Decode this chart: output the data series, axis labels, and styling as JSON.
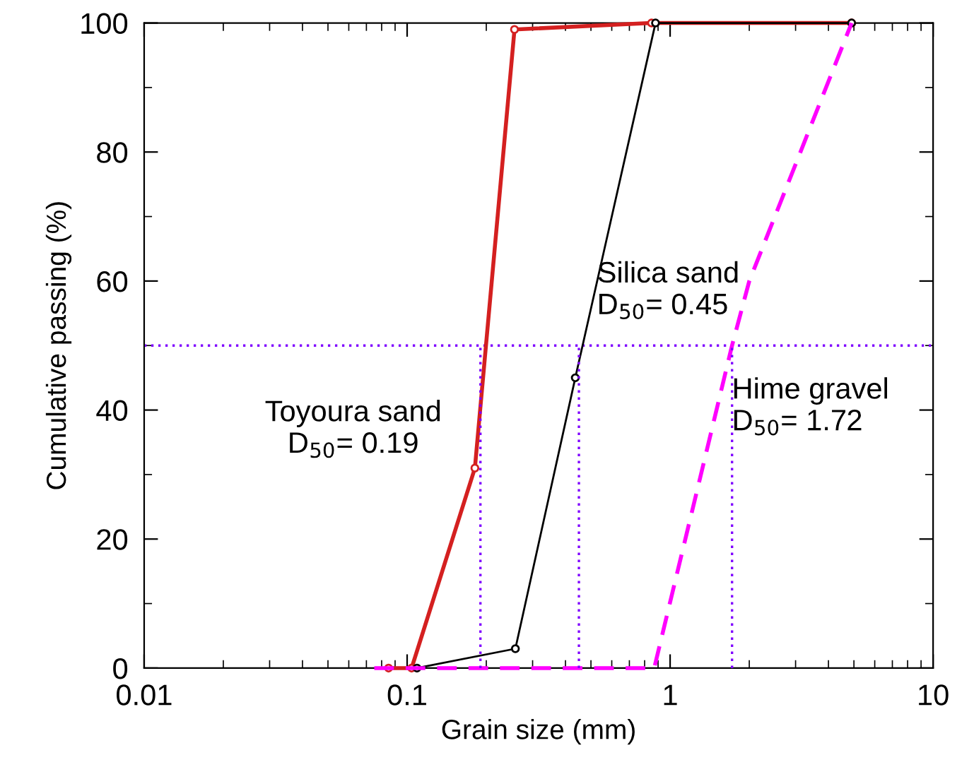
{
  "chart_data": {
    "type": "line",
    "xlabel": "Grain size (mm)",
    "ylabel": "Cumulative passing (%)",
    "log": "x",
    "xlim": [
      0.01,
      10
    ],
    "xticks": [
      0.01,
      0.1,
      1,
      10
    ],
    "ylim": [
      0,
      100
    ],
    "yticks": [
      0,
      20,
      40,
      60,
      80,
      100
    ],
    "grid": false,
    "legend": false,
    "series": [
      {
        "color": "#d42020",
        "marker": "circle",
        "line_style": "solid",
        "x": [
          0.085,
          0.104,
          0.181,
          0.256,
          0.85,
          4.9
        ],
        "values": [
          0,
          0,
          31,
          99,
          100,
          100
        ]
      },
      {
        "color": "#000000",
        "marker": "circle",
        "line_style": "solid",
        "x": [
          0.109,
          0.258,
          0.436,
          0.88,
          4.9
        ],
        "values": [
          0,
          3,
          45,
          100,
          100
        ]
      },
      {
        "color": "#ff00ff",
        "marker": "none",
        "line_style": "dashed",
        "x": [
          0.075,
          0.87,
          1.72,
          2.0,
          4.9
        ],
        "values": [
          0,
          0,
          50,
          60,
          100
        ]
      },
      {
        "color": "#7f00ff",
        "marker": "none",
        "line_style": "dotted",
        "x": [
          0.19,
          0.19
        ],
        "values": [
          0,
          50
        ]
      },
      {
        "color": "#7f00ff",
        "marker": "none",
        "line_style": "dotted",
        "x": [
          0.45,
          0.45
        ],
        "values": [
          0,
          50
        ]
      },
      {
        "color": "#7f00ff",
        "marker": "none",
        "line_style": "dotted",
        "x": [
          1.72,
          1.72
        ],
        "values": [
          0,
          50
        ]
      }
    ],
    "ref_lines": [
      {
        "axis": "y",
        "value": 50,
        "color": "#7f00ff",
        "line_style": "dotted"
      }
    ],
    "annotations": [
      "Toyoura sand\nD$_{50}$= 0.19",
      "Silica sand\nD$_{50}$= 0.45",
      "Hime gravel\nD$_{50}$= 1.72"
    ]
  }
}
